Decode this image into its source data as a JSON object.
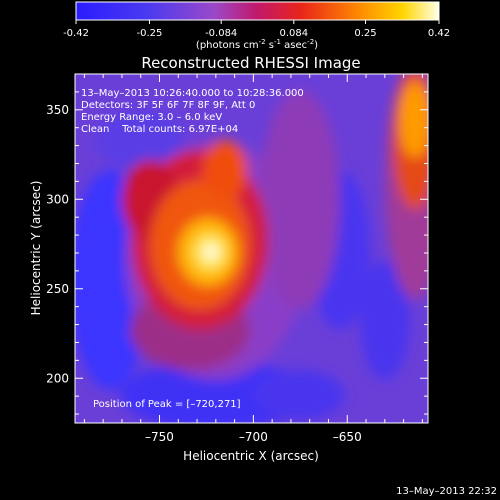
{
  "colorbar": {
    "ticks": [
      "-0.42",
      "-0.25",
      "-0.084",
      "0.084",
      "0.25",
      "0.42"
    ],
    "values": [
      -0.42,
      -0.25,
      -0.084,
      0.084,
      0.25,
      0.42
    ],
    "units_main": "(photons cm",
    "units_exp1": "-2",
    "units_mid": " s",
    "units_exp2": "-1",
    "units_end": " asec",
    "units_exp3": "-2",
    "units_close": ")"
  },
  "chart_data": {
    "type": "heatmap",
    "title": "Reconstructed RHESSI Image",
    "xlabel": "Heliocentric X (arcsec)",
    "ylabel": "Heliocentric Y (arcsec)",
    "xlim": [
      -795,
      -607
    ],
    "ylim": [
      175,
      370
    ],
    "x_ticks": [
      -750,
      -700,
      -650
    ],
    "y_ticks": [
      200,
      250,
      300,
      350
    ],
    "colorscale_range": [
      -0.42,
      0.42
    ],
    "peak": {
      "x": -720,
      "y": 271
    },
    "annotations": {
      "time": "13–May–2013 10:26:40.000 to 10:28:36.000",
      "detectors": "Detectors: 3F 5F 6F 7F 8F 9F, Att 0",
      "energy": "Energy Range: 3.0 – 6.0 keV",
      "clean": "Clean    Total counts: 6.97E+04",
      "peak": "Position of Peak = [–720,271]"
    }
  },
  "timestamp": "13–May–2013 22:32"
}
